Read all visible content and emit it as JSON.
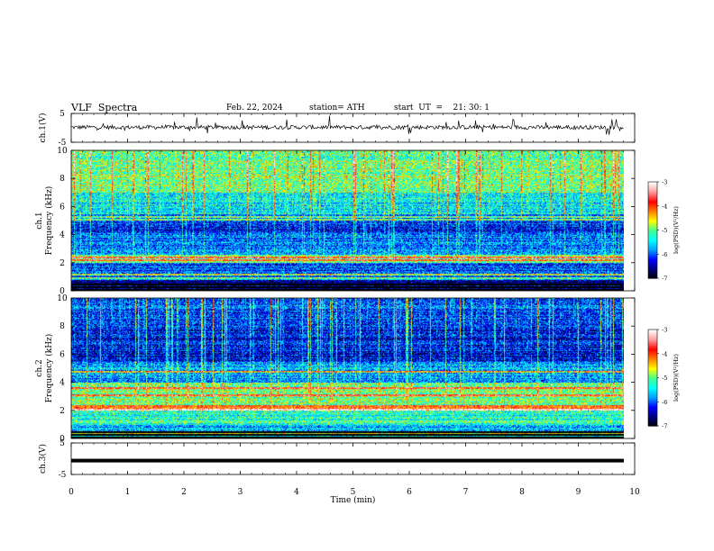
{
  "header": {
    "title": "VLF  Spectra",
    "date": "Feb. 22, 2024",
    "station": "station= ATH",
    "start_time": "start  UT  =    21: 30: 1"
  },
  "colors": {
    "trace": "#000000",
    "spectral_scale": [
      "#000000",
      "#00007f",
      "#0000ff",
      "#00a0ff",
      "#00ffff",
      "#40ff90",
      "#ffff00",
      "#ff8000",
      "#ff0000",
      "#ff9999",
      "#ffffff"
    ]
  },
  "chart_data": [
    {
      "type": "line",
      "name": "ch1-waveform",
      "ylabel": "ch.1(V)",
      "ylim": [
        -5,
        5
      ],
      "yticks": [
        "5",
        "-5"
      ],
      "xlim": [
        0,
        10
      ],
      "description_series": "noisy waveform near 0 V with impulsive spikes",
      "baseline": 0.2
    },
    {
      "type": "heatmap",
      "name": "ch1-spectrogram",
      "ylabel": "ch.1\nFrequency (kHz)",
      "ylim": [
        0,
        10
      ],
      "yticks": [
        "0",
        "2",
        "4",
        "6",
        "8",
        "10"
      ],
      "xlim": [
        0,
        9.8
      ],
      "colorbar": {
        "label": "log(PSD)(V²/Hz)",
        "range": [
          -7,
          -3
        ],
        "ticks": [
          "-3",
          "-4",
          "-5",
          "-6",
          "-7"
        ]
      },
      "bands": [
        {
          "f0": 0.0,
          "f1": 0.9,
          "level": -6.6
        },
        {
          "f0": 0.9,
          "f1": 2.0,
          "level": -6.0
        },
        {
          "f0": 2.0,
          "f1": 2.6,
          "level": -5.0
        },
        {
          "f0": 2.6,
          "f1": 4.0,
          "level": -5.9
        },
        {
          "f0": 4.0,
          "f1": 5.5,
          "level": -6.1
        },
        {
          "f0": 5.5,
          "f1": 7.0,
          "level": -5.4
        },
        {
          "f0": 7.0,
          "f1": 10.0,
          "level": -5.0
        }
      ],
      "lines_khz": [
        0.9,
        1.2,
        2.2,
        2.4,
        5.1,
        5.3
      ]
    },
    {
      "type": "heatmap",
      "name": "ch2-spectrogram",
      "ylabel": "ch.2\nFrequency (kHz)",
      "ylim": [
        0,
        10
      ],
      "yticks": [
        "0",
        "2",
        "4",
        "6",
        "8",
        "10"
      ],
      "xlim": [
        0,
        9.8
      ],
      "colorbar": {
        "label": "log(PSD)(V²/Hz)",
        "range": [
          -7,
          -3
        ],
        "ticks": [
          "-3",
          "-4",
          "-5",
          "-6",
          "-7"
        ]
      },
      "bands": [
        {
          "f0": 0.0,
          "f1": 1.0,
          "level": -5.6
        },
        {
          "f0": 1.0,
          "f1": 2.0,
          "level": -5.2
        },
        {
          "f0": 2.0,
          "f1": 2.4,
          "level": -4.1
        },
        {
          "f0": 2.4,
          "f1": 4.0,
          "level": -5.0
        },
        {
          "f0": 4.0,
          "f1": 5.5,
          "level": -5.7
        },
        {
          "f0": 5.5,
          "f1": 8.0,
          "level": -6.3
        },
        {
          "f0": 8.0,
          "f1": 10.0,
          "level": -6.0
        }
      ],
      "lines_khz": [
        0.4,
        2.1,
        3.1,
        3.6,
        4.8
      ]
    },
    {
      "type": "line",
      "name": "ch3-waveform",
      "ylabel": "ch.3(V)",
      "ylim": [
        -5,
        5
      ],
      "yticks": [
        "5",
        "-5"
      ],
      "xlim": [
        0,
        10
      ],
      "xlabel": "Time  (min)",
      "xticks": [
        "0",
        "1",
        "2",
        "3",
        "4",
        "5",
        "6",
        "7",
        "8",
        "9",
        "10"
      ],
      "baseline": -0.6
    }
  ]
}
